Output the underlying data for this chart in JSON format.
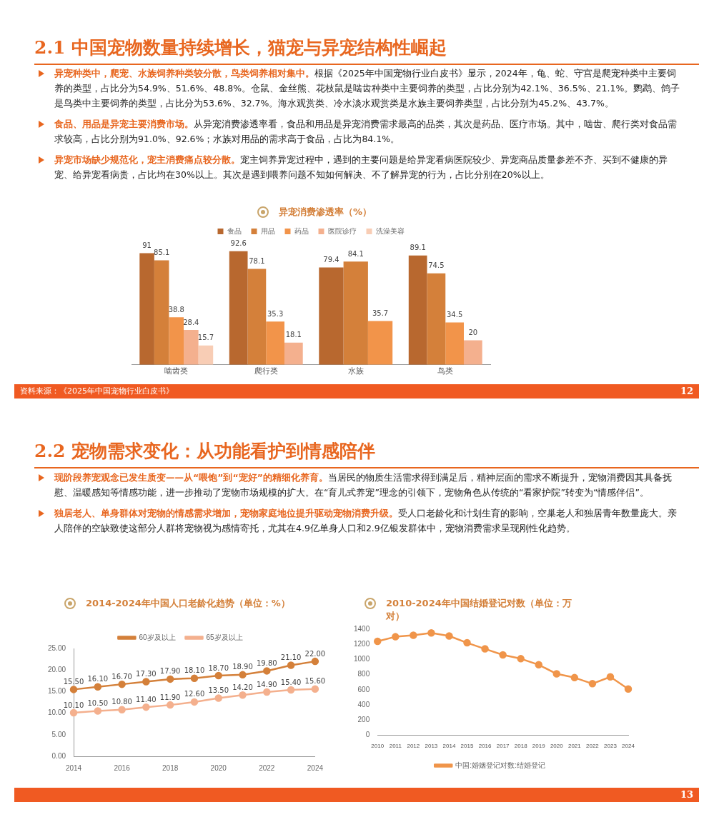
{
  "chart_data": [
    {
      "type": "bar",
      "title": "异宠消费渗透率（%）",
      "categories": [
        "啮齿类",
        "爬行类",
        "水族",
        "鸟类"
      ],
      "series": [
        {
          "name": "食品",
          "color": "#b8682f",
          "values": [
            91,
            92.6,
            79.4,
            89.1
          ]
        },
        {
          "name": "用品",
          "color": "#d4803a",
          "values": [
            85.1,
            78.1,
            84.1,
            74.5
          ]
        },
        {
          "name": "药品",
          "color": "#f2944a",
          "values": [
            38.8,
            35.3,
            35.7,
            34.5
          ]
        },
        {
          "name": "医院诊疗",
          "color": "#f4b08e",
          "values": [
            28.4,
            18.1,
            null,
            20
          ]
        },
        {
          "name": "洗澡美容",
          "color": "#f8cdb5",
          "values": [
            15.7,
            null,
            null,
            null
          ]
        }
      ],
      "data_labels": true,
      "legend": "top",
      "grid": false,
      "annotations": [
        "2.1 中国宠物数量持续增长，猫宠与异宠结构性崛起",
        "异宠种类中，爬宠、水族饲养种类较分散，鸟类饲养相对集中。根据《2025年中国宠物行业白皮书》显示，2024年，龟、蛇、守宫是爬宠种类中主要饲养的类型，占比分为54.9%、51.6%、48.8%。仓鼠、金丝熊、花枝鼠是啮齿种类中主要饲养的类型，占比分别为42.1%、36.5%、21.1%。鹦鹉、鸽子是鸟类中主要饲养的类型，占比分为53.6%、32.7%。海水观赏类、冷水淡水观赏类是水族主要饲养类型，占比分别为45.2%、43.7%。",
        "食品、用品是异宠主要消费市场。从异宠消费渗透率看，食品和用品是异宠消费需求最高的品类，其次是药品、医疗市场。其中，啮齿、爬行类对食品需求较高，占比分别为91.0%、92.6%；水族对用品的需求高于食品，占比为84.1%。",
        "异宠市场缺少规范化，宠主消费痛点较分散。宠主饲养异宠过程中，遇到的主要问题是给异宠看病医院较少、异宠商品质量参差不齐、买到不健康的异宠、给异宠看病贵，占比均在30%以上。其次是遇到喂养问题不知如何解决、不了解异宠的行为，占比分别在20%以上。",
        "资料来源：《2025年中国宠物行业白皮书》",
        "12"
      ]
    },
    {
      "type": "line",
      "title": "2014-2024年中国人口老龄化趋势（单位：%）",
      "x": [
        2014,
        2015,
        2016,
        2017,
        2018,
        2019,
        2020,
        2021,
        2022,
        2023,
        2024
      ],
      "xlim": [
        2014,
        2024
      ],
      "xticks": [
        2014,
        2016,
        2018,
        2020,
        2022,
        2024
      ],
      "ylim": [
        0,
        25
      ],
      "yticks": [
        {
          "value": 0,
          "label": "0.00"
        },
        {
          "value": 5,
          "label": "5.00"
        },
        {
          "value": 10,
          "label": "10.00"
        },
        {
          "value": 15,
          "label": "15.00"
        },
        {
          "value": 20,
          "label": "20.00"
        },
        {
          "value": 25,
          "label": "25.00"
        }
      ],
      "series": [
        {
          "name": "60岁及以上",
          "color": "#d4803a",
          "values": [
            15.5,
            16.1,
            16.7,
            17.3,
            17.9,
            18.1,
            18.7,
            18.9,
            19.8,
            21.1,
            22
          ],
          "value_labels": [
            "15.50",
            "16.10",
            "16.70",
            "17.30",
            "17.90",
            "18.10",
            "18.70",
            "18.90",
            "19.80",
            "21.10",
            "22.00"
          ]
        },
        {
          "name": "65岁及以上",
          "color": "#f4b08e",
          "values": [
            10.1,
            10.5,
            10.8,
            11.4,
            11.9,
            12.6,
            13.5,
            14.2,
            14.9,
            15.4,
            15.6
          ],
          "value_labels": [
            "10.10",
            "10.50",
            "10.80",
            "11.40",
            "11.90",
            "12.60",
            "13.50",
            "14.20",
            "14.90",
            "15.40",
            "15.60"
          ]
        }
      ],
      "legend": "top",
      "grid": false,
      "marker": "circle",
      "annotations": [
        "2.2 宠物需求变化：从功能看护到情感陪伴",
        "现阶段养宠观念已发生质变——从“喂饱”到“宠好”的精细化养育。当居民的物质生活需求得到满足后，精神层面的需求不断提升，宠物消费因其具备抚慰、温暖感知等情感功能，进一步推动了宠物市场规模的扩大。在“育儿式养宠”理念的引领下，宠物角色从传统的“看家护院”转变为“情感伴侣”。",
        "独居老人、单身群体对宠物的情感需求增加，宠物家庭地位提升驱动宠物消费升级。受人口老龄化和计划生育的影响，空巢老人和独居青年数量庞大。亲人陪伴的空缺致使这部分人群将宠物视为感情寄托，尤其在4.9亿单身人口和2.9亿银发群体中，宠物消费需求呈现刚性化趋势。",
        "13"
      ]
    },
    {
      "type": "line",
      "title": "2010-2024年中国结婚登记对数（单位：万对）",
      "categories": [
        "2010",
        "2011",
        "2012",
        "2013",
        "2014",
        "2015",
        "2016",
        "2017",
        "2018",
        "2019",
        "2020",
        "2021",
        "2022",
        "2023",
        "2024"
      ],
      "ylim": [
        0,
        1400
      ],
      "yticks": [
        0,
        200,
        400,
        600,
        800,
        1000,
        1200,
        1400
      ],
      "series": [
        {
          "name": "中国:婚姻登记对数:结婚登记",
          "color": "#f0954a",
          "values": [
            1240,
            1300,
            1320,
            1350,
            1310,
            1220,
            1140,
            1060,
            1010,
            930,
            810,
            760,
            680,
            770,
            610
          ]
        }
      ],
      "legend": "bottom",
      "grid": false,
      "marker": "circle"
    }
  ]
}
